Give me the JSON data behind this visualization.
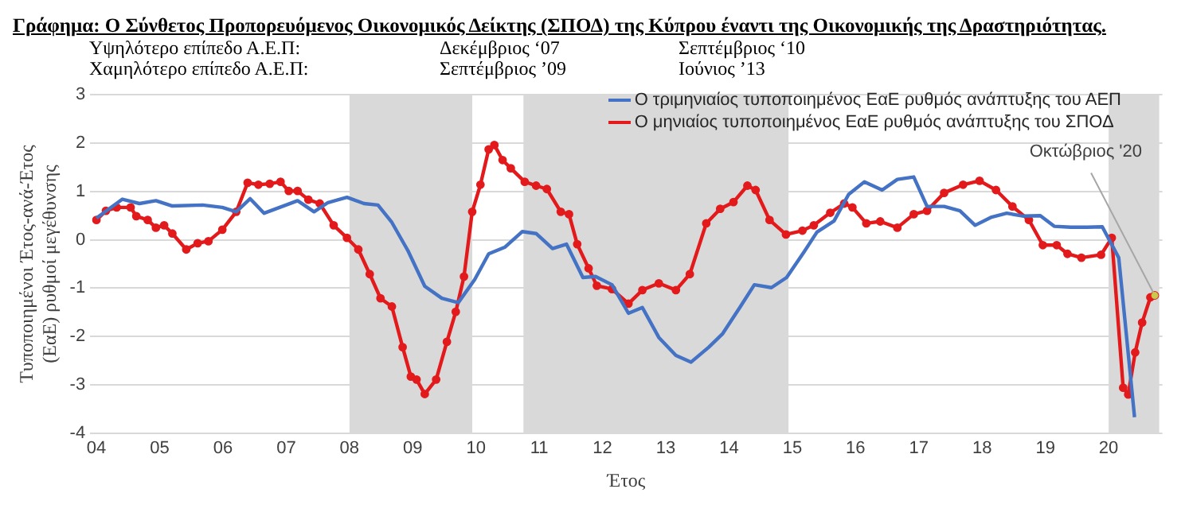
{
  "chart_data": {
    "type": "line",
    "title": "Γράφημα: Ο Σύνθετος Προπορευόμενος Οικονομικός Δείκτης (ΣΠΟΔ) της Κύπρου έναντι της Οικονομικής της  Δραστηριότητας.",
    "annotations": [
      "Υψηλότερο επίπεδο Α.Ε.Π:",
      "Δεκέμβριος ‘07",
      "Σεπτέμβριος ‘10",
      "Χαμηλότερο επίπεδο Α.Ε.Π:",
      "Σεπτέμβριος ’09",
      "Ιούνιος ’13",
      {
        "text": "Οκτώβριος '20",
        "x": 2020.73,
        "y": -1.15
      }
    ],
    "xlabel": "Έτος",
    "ylabel": "Τυποποιημένοι Έτος-ανά-Έτος\n(ΕαΕ) ρυθμοί μεγέθυνσης",
    "xlim": [
      2003.9,
      2020.85
    ],
    "ylim": [
      -4,
      3
    ],
    "yticks": [
      -4,
      -3,
      -2,
      -1,
      0,
      1,
      2,
      3
    ],
    "xticks": [
      {
        "value": 2004,
        "label": "04"
      },
      {
        "value": 2005,
        "label": "05"
      },
      {
        "value": 2006,
        "label": "06"
      },
      {
        "value": 2007,
        "label": "07"
      },
      {
        "value": 2008,
        "label": "08"
      },
      {
        "value": 2009,
        "label": "09"
      },
      {
        "value": 2010,
        "label": "10"
      },
      {
        "value": 2011,
        "label": "11"
      },
      {
        "value": 2012,
        "label": "12"
      },
      {
        "value": 2013,
        "label": "13"
      },
      {
        "value": 2014,
        "label": "14"
      },
      {
        "value": 2015,
        "label": "15"
      },
      {
        "value": 2016,
        "label": "16"
      },
      {
        "value": 2017,
        "label": "17"
      },
      {
        "value": 2018,
        "label": "18"
      },
      {
        "value": 2019,
        "label": "19"
      },
      {
        "value": 2020,
        "label": "20"
      }
    ],
    "grid": "y",
    "legend": "top right",
    "line_style": "solid",
    "bands": [
      {
        "axis": "x",
        "from": 2008.0,
        "to": 2009.94,
        "color": "#d9d9d9"
      },
      {
        "axis": "x",
        "from": 2010.75,
        "to": 2014.94,
        "color": "#d9d9d9"
      },
      {
        "axis": "x",
        "from": 2020.0,
        "to": 2020.8,
        "color": "#d9d9d9"
      }
    ],
    "series": [
      {
        "name": "Ο τριμηνιαίος τυποποιημένος ΕαΕ ρυθμός ανάπτυξης του ΑΕΠ",
        "color": "#4472c4",
        "marker": "none",
        "x": [
          2004.0,
          2004.41,
          2004.68,
          2004.94,
          2005.2,
          2005.68,
          2005.99,
          2006.21,
          2006.43,
          2006.65,
          2007.18,
          2007.44,
          2007.66,
          2007.96,
          2008.23,
          2008.45,
          2008.67,
          2008.93,
          2009.19,
          2009.46,
          2009.72,
          2009.98,
          2010.2,
          2010.46,
          2010.73,
          2010.95,
          2011.21,
          2011.43,
          2011.69,
          2011.89,
          2012.15,
          2012.41,
          2012.63,
          2012.89,
          2013.16,
          2013.4,
          2013.68,
          2013.9,
          2014.17,
          2014.4,
          2014.67,
          2014.91,
          2015.18,
          2015.39,
          2015.66,
          2015.89,
          2016.14,
          2016.42,
          2016.66,
          2016.92,
          2017.13,
          2017.4,
          2017.65,
          2017.89,
          2018.15,
          2018.39,
          2018.66,
          2018.92,
          2019.14,
          2019.4,
          2019.66,
          2019.9,
          2020.16,
          2020.41
        ],
        "values": [
          0.45,
          0.84,
          0.75,
          0.81,
          0.7,
          0.72,
          0.67,
          0.58,
          0.85,
          0.55,
          0.81,
          0.58,
          0.77,
          0.88,
          0.75,
          0.72,
          0.36,
          -0.24,
          -0.96,
          -1.21,
          -1.3,
          -0.82,
          -0.29,
          -0.15,
          0.17,
          0.13,
          -0.18,
          -0.09,
          -0.78,
          -0.76,
          -0.93,
          -1.52,
          -1.4,
          -2.02,
          -2.39,
          -2.53,
          -2.22,
          -1.94,
          -1.4,
          -0.93,
          -0.99,
          -0.78,
          -0.26,
          0.16,
          0.39,
          0.94,
          1.2,
          1.03,
          1.25,
          1.3,
          0.69,
          0.69,
          0.6,
          0.3,
          0.47,
          0.55,
          0.49,
          0.5,
          0.28,
          0.26,
          0.26,
          0.27,
          -0.37,
          -3.67
        ]
      },
      {
        "name": "Ο μηνιαίος τυποποιημένος ΕαΕ ρυθμός ανάπτυξης του ΣΠΟΔ",
        "color": "#e31a1c",
        "marker": "circle",
        "x": [
          2004.0,
          2004.15,
          2004.32,
          2004.54,
          2004.63,
          2004.81,
          2004.94,
          2005.07,
          2005.2,
          2005.42,
          2005.6,
          2005.77,
          2005.99,
          2006.21,
          2006.39,
          2006.56,
          2006.74,
          2006.91,
          2007.04,
          2007.18,
          2007.35,
          2007.53,
          2007.75,
          2007.96,
          2008.14,
          2008.32,
          2008.49,
          2008.67,
          2008.84,
          2008.97,
          2009.06,
          2009.19,
          2009.37,
          2009.54,
          2009.68,
          2009.81,
          2009.94,
          2010.07,
          2010.2,
          2010.29,
          2010.42,
          2010.55,
          2010.77,
          2010.95,
          2011.12,
          2011.34,
          2011.47,
          2011.6,
          2011.78,
          2011.91,
          2012.15,
          2012.41,
          2012.63,
          2012.89,
          2013.16,
          2013.38,
          2013.64,
          2013.86,
          2014.07,
          2014.29,
          2014.42,
          2014.64,
          2014.9,
          2015.16,
          2015.34,
          2015.6,
          2015.82,
          2015.95,
          2016.17,
          2016.39,
          2016.66,
          2016.92,
          2017.13,
          2017.4,
          2017.7,
          2017.96,
          2018.22,
          2018.48,
          2018.74,
          2018.96,
          2019.18,
          2019.35,
          2019.57,
          2019.88,
          2020.05,
          2020.23,
          2020.31,
          2020.42,
          2020.53,
          2020.66,
          2020.73
        ],
        "values": [
          0.41,
          0.6,
          0.67,
          0.67,
          0.49,
          0.41,
          0.25,
          0.3,
          0.13,
          -0.2,
          -0.07,
          -0.03,
          0.21,
          0.58,
          1.18,
          1.14,
          1.16,
          1.2,
          1.01,
          1.01,
          0.83,
          0.75,
          0.3,
          0.04,
          -0.2,
          -0.71,
          -1.21,
          -1.38,
          -2.22,
          -2.83,
          -2.89,
          -3.19,
          -2.89,
          -2.11,
          -1.49,
          -0.76,
          0.58,
          1.14,
          1.87,
          1.96,
          1.65,
          1.48,
          1.2,
          1.12,
          1.05,
          0.58,
          0.53,
          -0.09,
          -0.59,
          -0.95,
          -1.02,
          -1.32,
          -1.04,
          -0.9,
          -1.04,
          -0.71,
          0.34,
          0.64,
          0.78,
          1.12,
          1.03,
          0.41,
          0.11,
          0.19,
          0.3,
          0.56,
          0.75,
          0.67,
          0.34,
          0.38,
          0.25,
          0.53,
          0.6,
          0.97,
          1.14,
          1.22,
          1.03,
          0.69,
          0.41,
          -0.11,
          -0.11,
          -0.29,
          -0.37,
          -0.31,
          0.04,
          -3.06,
          -3.2,
          -2.33,
          -1.71,
          -1.19,
          -1.15
        ]
      }
    ]
  }
}
